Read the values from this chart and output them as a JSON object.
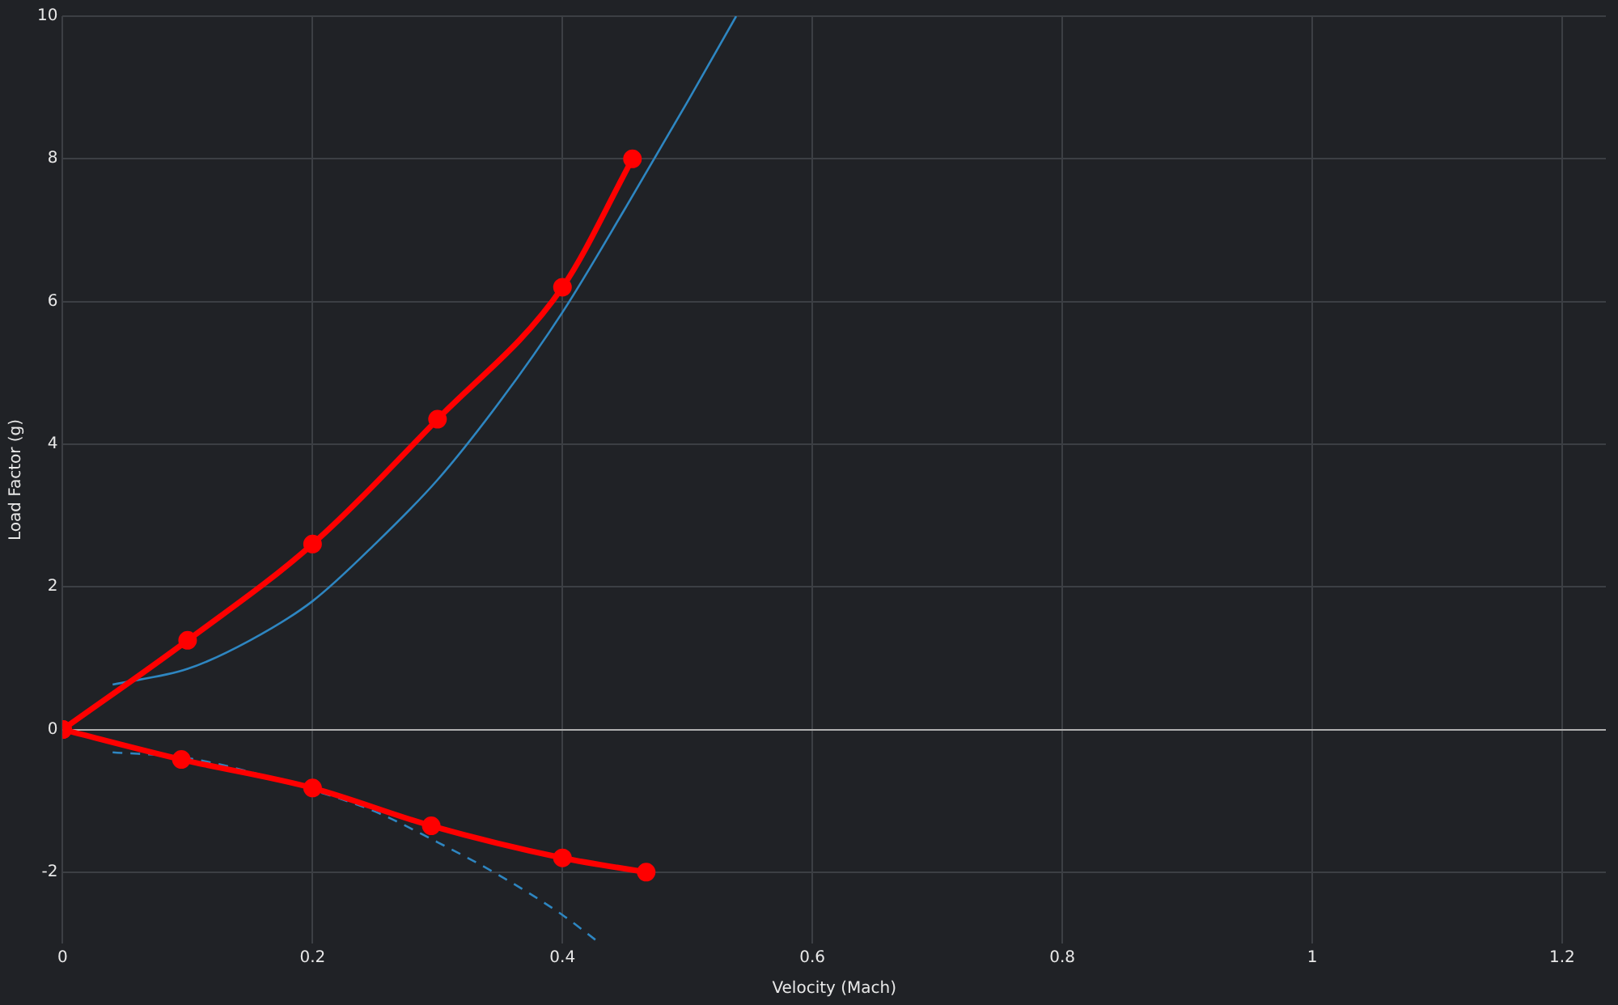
{
  "chart_data": {
    "type": "line",
    "xlabel": "Velocity (Mach)",
    "ylabel": "Load Factor (g)",
    "xlim": [
      0,
      1.235
    ],
    "xticks": [
      0,
      0.2,
      0.4,
      0.6,
      0.8,
      1,
      1.2
    ],
    "ylim": [
      -3,
      10
    ],
    "yticks": [
      -2,
      0,
      2,
      4,
      6,
      8,
      10
    ],
    "grid": true,
    "legend": false,
    "series": [
      {
        "color": "#ff0000",
        "marker": "circle",
        "line_style": "solid",
        "x": [
          0,
          0.1,
          0.2,
          0.3,
          0.4,
          0.456
        ],
        "values": [
          0,
          1.25,
          2.6,
          4.35,
          6.2,
          8.0
        ]
      },
      {
        "color": "#ff0000",
        "marker": "circle",
        "line_style": "solid",
        "x": [
          0,
          0.095,
          0.2,
          0.295,
          0.4,
          0.467
        ],
        "values": [
          0,
          -0.42,
          -0.82,
          -1.35,
          -1.8,
          -2.0
        ]
      },
      {
        "color": "#2e86c1",
        "marker": "none",
        "line_style": "solid",
        "x": [
          0.04,
          0.1,
          0.15,
          0.2,
          0.25,
          0.3,
          0.35,
          0.4,
          0.45,
          0.5,
          0.539
        ],
        "values": [
          0.63,
          0.85,
          1.25,
          1.8,
          2.6,
          3.5,
          4.6,
          5.85,
          7.3,
          8.8,
          10
        ]
      },
      {
        "color": "#2e86c1",
        "marker": "none",
        "line_style": "dashed",
        "x": [
          0.04,
          0.1,
          0.2,
          0.25,
          0.3,
          0.35,
          0.4,
          0.428
        ],
        "values": [
          -0.32,
          -0.4,
          -0.85,
          -1.15,
          -1.58,
          -2.05,
          -2.6,
          -2.97
        ]
      }
    ]
  }
}
